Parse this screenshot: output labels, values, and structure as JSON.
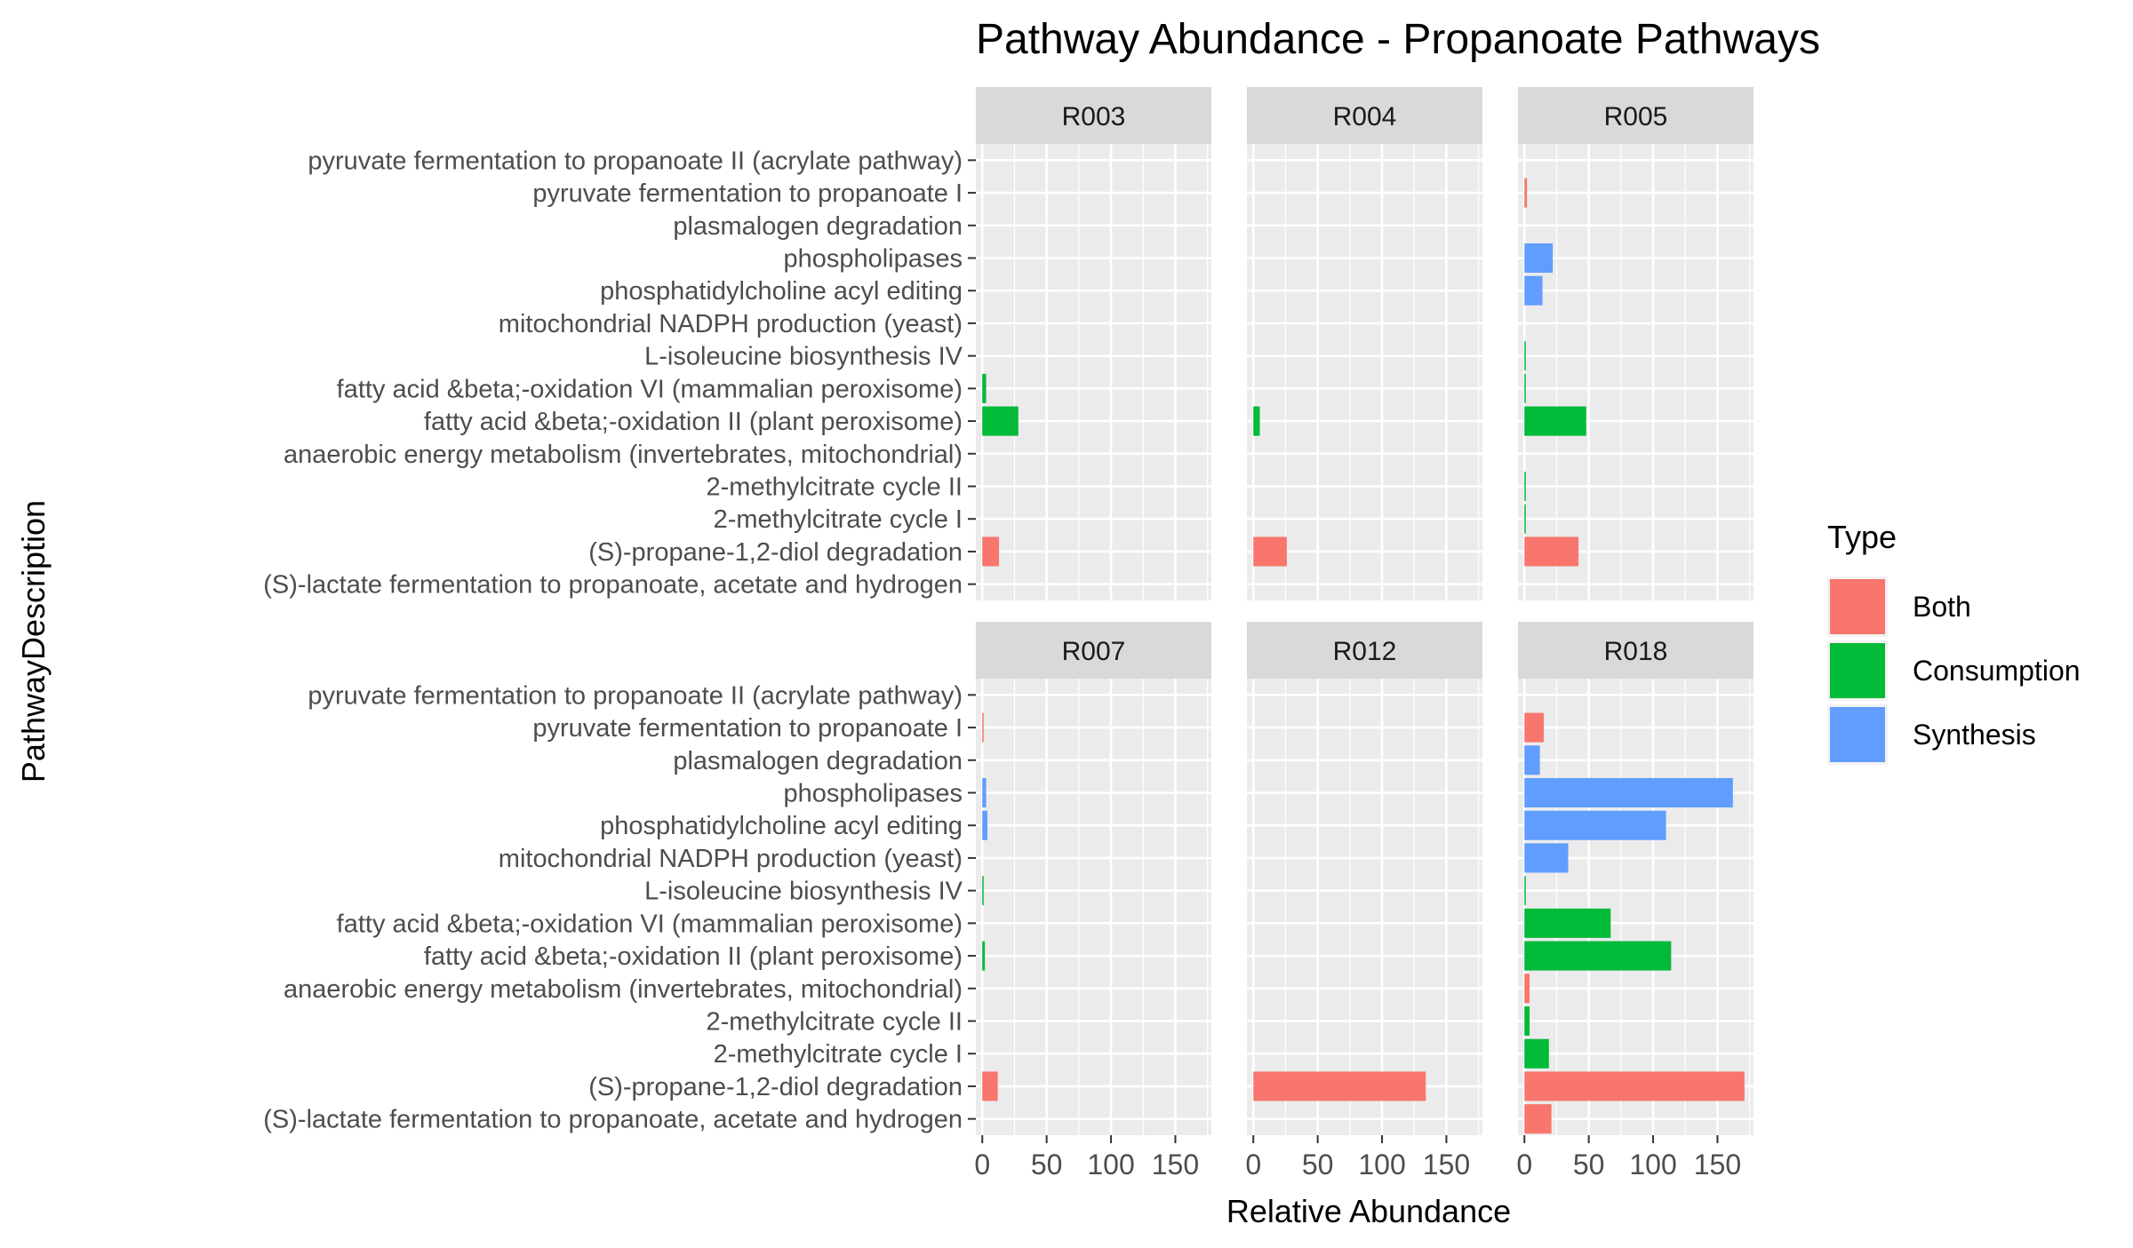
{
  "chart_data": {
    "type": "bar",
    "orientation": "horizontal",
    "title": "Pathway Abundance - Propanoate Pathways",
    "xlabel": "Relative Abundance",
    "ylabel": "PathwayDescription",
    "xlim": [
      -5,
      178
    ],
    "xticks": [
      0,
      50,
      100,
      150
    ],
    "grid": true,
    "legend": {
      "title": "Type",
      "position": "right",
      "entries": [
        {
          "name": "Both",
          "color": "#F8766D"
        },
        {
          "name": "Consumption",
          "color": "#00BA38"
        },
        {
          "name": "Synthesis",
          "color": "#619CFF"
        }
      ]
    },
    "categories": [
      "pyruvate fermentation to propanoate II (acrylate pathway)",
      "pyruvate fermentation to propanoate I",
      "plasmalogen degradation",
      "phospholipases",
      "phosphatidylcholine acyl editing",
      "mitochondrial NADPH production (yeast)",
      "L-isoleucine biosynthesis IV",
      "fatty acid &beta;-oxidation VI (mammalian peroxisome)",
      "fatty acid &beta;-oxidation II (plant peroxisome)",
      "anaerobic energy metabolism (invertebrates, mitochondrial)",
      "2-methylcitrate cycle II",
      "2-methylcitrate cycle I",
      "(S)-propane-1,2-diol degradation",
      "(S)-lactate fermentation to propanoate, acetate and hydrogen"
    ],
    "category_types": [
      "Both",
      "Both",
      "Synthesis",
      "Synthesis",
      "Synthesis",
      "Synthesis",
      "Consumption",
      "Consumption",
      "Consumption",
      "Both",
      "Consumption",
      "Consumption",
      "Both",
      "Both"
    ],
    "panels": [
      {
        "name": "R003",
        "values": [
          0,
          0,
          0,
          0,
          0,
          0,
          0,
          3,
          28,
          0,
          0,
          0,
          13,
          0
        ]
      },
      {
        "name": "R004",
        "values": [
          0,
          0,
          0,
          0,
          0,
          0,
          0,
          0,
          5,
          0,
          0,
          0,
          26,
          0
        ]
      },
      {
        "name": "R005",
        "values": [
          0,
          2,
          0,
          22,
          14,
          0,
          1,
          1,
          48,
          0,
          1,
          1,
          42,
          0
        ]
      },
      {
        "name": "R007",
        "values": [
          0,
          1,
          0,
          3,
          4,
          0,
          1,
          0,
          2,
          0,
          0,
          0,
          12,
          0
        ]
      },
      {
        "name": "R012",
        "values": [
          0,
          0,
          0,
          0,
          0,
          0,
          0,
          0,
          0,
          0,
          0,
          0,
          134,
          0
        ]
      },
      {
        "name": "R018",
        "values": [
          0,
          15,
          12,
          162,
          110,
          34,
          1,
          67,
          114,
          4,
          4,
          19,
          171,
          21
        ]
      }
    ]
  }
}
